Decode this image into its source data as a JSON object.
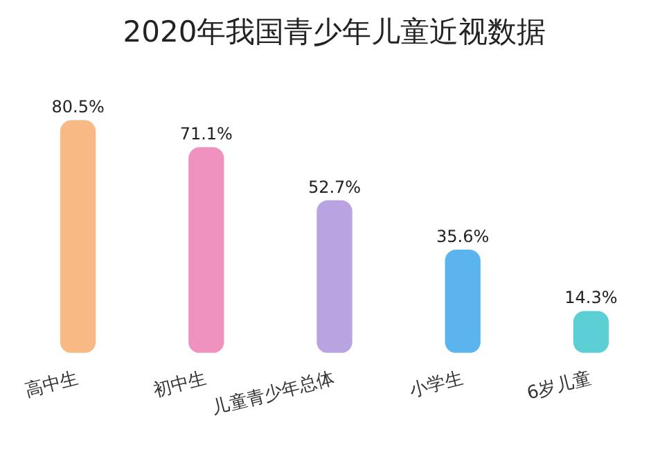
{
  "chart_data": {
    "type": "bar",
    "title": "2020年我国青少年儿童近视数据",
    "categories": [
      "高中生",
      "初中生",
      "儿童青少年总体",
      "小学生",
      "6岁儿童"
    ],
    "values": [
      80.5,
      71.1,
      52.7,
      35.6,
      14.3
    ],
    "colors": [
      "#f8b985",
      "#f092bf",
      "#b9a3e0",
      "#5bb4ee",
      "#5ccfd4"
    ],
    "value_labels": [
      "80.5%",
      "71.1%",
      "52.7%",
      "35.6%",
      "14.3%"
    ],
    "tick_labels": "x",
    "grid": false,
    "legend": false
  }
}
